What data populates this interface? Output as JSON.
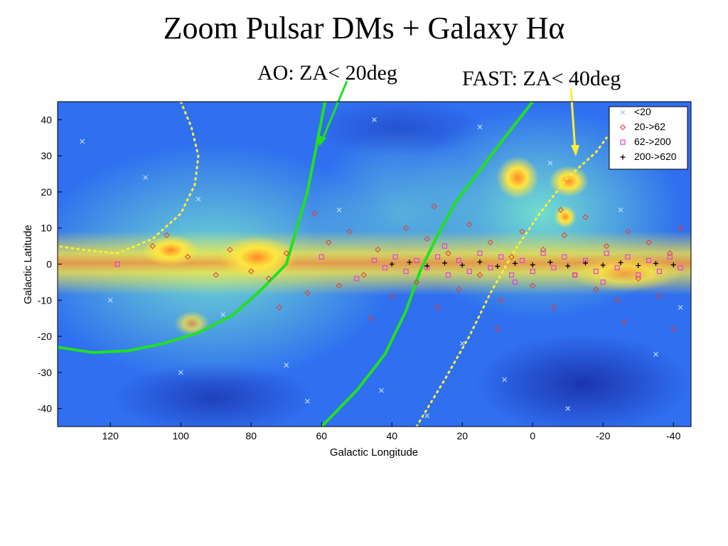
{
  "slide": {
    "title": "Zoom  Pulsar DMs + Galaxy Hα",
    "annotation_ao": "AO: ZA< 20deg",
    "annotation_fast": "FAST: ZA< 40deg"
  },
  "chart_data": {
    "type": "scatter",
    "title": "",
    "xlabel": "Galactic Longitude",
    "ylabel": "Galactic Latitude",
    "xlim": [
      135,
      -45
    ],
    "ylim": [
      -45,
      45
    ],
    "xticks": [
      120,
      100,
      80,
      60,
      40,
      20,
      0,
      -20,
      -40
    ],
    "yticks": [
      40,
      30,
      20,
      10,
      0,
      -10,
      -20,
      -30,
      -40
    ],
    "background": "H-alpha all-sky intensity map (colormap blue to yellow/red)",
    "legend_position": "top-right",
    "colors": {
      "dm_lt_20": "#b8d8ff",
      "dm_20_62": "#e83a2a",
      "dm_62_200": "#e040e0",
      "dm_200_620": "#000000",
      "ao_curve": "#22e022",
      "fast_curve": "#ffee33",
      "arrow": "#ffee33"
    },
    "series": [
      {
        "name": "<20",
        "marker": "x",
        "points": [
          [
            128,
            34
          ],
          [
            110,
            24
          ],
          [
            95,
            18
          ],
          [
            88,
            -14
          ],
          [
            70,
            -28
          ],
          [
            64,
            -38
          ],
          [
            45,
            40
          ],
          [
            43,
            -35
          ],
          [
            30,
            -42
          ],
          [
            15,
            38
          ],
          [
            8,
            -32
          ],
          [
            -10,
            -40
          ],
          [
            -25,
            15
          ],
          [
            -35,
            -25
          ],
          [
            -42,
            -12
          ],
          [
            120,
            -10
          ],
          [
            100,
            -30
          ],
          [
            55,
            15
          ],
          [
            20,
            -22
          ],
          [
            -5,
            28
          ]
        ]
      },
      {
        "name": "20->62",
        "marker": "diamond",
        "points": [
          [
            108,
            5
          ],
          [
            104,
            8
          ],
          [
            98,
            2
          ],
          [
            90,
            -3
          ],
          [
            86,
            4
          ],
          [
            80,
            -2
          ],
          [
            75,
            -4
          ],
          [
            70,
            3
          ],
          [
            64,
            -8
          ],
          [
            58,
            6
          ],
          [
            55,
            -6
          ],
          [
            52,
            9
          ],
          [
            48,
            -3
          ],
          [
            44,
            4
          ],
          [
            40,
            -9
          ],
          [
            36,
            10
          ],
          [
            33,
            -5
          ],
          [
            30,
            7
          ],
          [
            27,
            -12
          ],
          [
            24,
            3
          ],
          [
            21,
            -7
          ],
          [
            18,
            11
          ],
          [
            15,
            -3
          ],
          [
            12,
            6
          ],
          [
            9,
            -10
          ],
          [
            6,
            2
          ],
          [
            3,
            9
          ],
          [
            0,
            -6
          ],
          [
            -3,
            4
          ],
          [
            -6,
            -12
          ],
          [
            -9,
            8
          ],
          [
            -12,
            -3
          ],
          [
            -15,
            13
          ],
          [
            -18,
            -7
          ],
          [
            -21,
            5
          ],
          [
            -24,
            -10
          ],
          [
            -27,
            9
          ],
          [
            -30,
            -4
          ],
          [
            -33,
            6
          ],
          [
            -36,
            -9
          ],
          [
            -39,
            3
          ],
          [
            -42,
            10
          ],
          [
            72,
            -12
          ],
          [
            62,
            14
          ],
          [
            46,
            -15
          ],
          [
            28,
            16
          ],
          [
            10,
            -18
          ],
          [
            -8,
            15
          ],
          [
            -26,
            -16
          ],
          [
            -40,
            -18
          ]
        ]
      },
      {
        "name": "62->200",
        "marker": "square",
        "points": [
          [
            45,
            1
          ],
          [
            42,
            -1
          ],
          [
            39,
            2
          ],
          [
            36,
            -2
          ],
          [
            33,
            1
          ],
          [
            30,
            -1
          ],
          [
            27,
            2
          ],
          [
            24,
            -3
          ],
          [
            21,
            1
          ],
          [
            18,
            -2
          ],
          [
            15,
            3
          ],
          [
            12,
            -1
          ],
          [
            9,
            2
          ],
          [
            6,
            -3
          ],
          [
            3,
            1
          ],
          [
            0,
            -2
          ],
          [
            -3,
            3
          ],
          [
            -6,
            -1
          ],
          [
            -9,
            2
          ],
          [
            -12,
            -3
          ],
          [
            -15,
            1
          ],
          [
            -18,
            -2
          ],
          [
            -21,
            3
          ],
          [
            -24,
            -1
          ],
          [
            -27,
            2
          ],
          [
            -30,
            -3
          ],
          [
            -33,
            1
          ],
          [
            -36,
            -2
          ],
          [
            -39,
            2
          ],
          [
            -42,
            -1
          ],
          [
            118,
            0
          ],
          [
            60,
            2
          ],
          [
            50,
            -4
          ],
          [
            25,
            5
          ],
          [
            5,
            -5
          ],
          [
            -20,
            -5
          ]
        ]
      },
      {
        "name": "200->620",
        "marker": "plus",
        "points": [
          [
            40,
            0
          ],
          [
            35,
            0.5
          ],
          [
            30,
            -0.5
          ],
          [
            25,
            0.3
          ],
          [
            20,
            -0.3
          ],
          [
            15,
            0.6
          ],
          [
            10,
            -0.6
          ],
          [
            5,
            0.2
          ],
          [
            0,
            -0.2
          ],
          [
            -5,
            0.5
          ],
          [
            -10,
            -0.5
          ],
          [
            -15,
            0.3
          ],
          [
            -20,
            -0.3
          ],
          [
            -25,
            0.4
          ],
          [
            -30,
            -0.4
          ],
          [
            -35,
            0.2
          ],
          [
            -40,
            -0.2
          ]
        ]
      }
    ],
    "curves": [
      {
        "label_ref": "annotation_ao",
        "style": "solid",
        "color_key": "ao_curve",
        "points": [
          [
            135,
            -23
          ],
          [
            125,
            -24.5
          ],
          [
            115,
            -24
          ],
          [
            105,
            -22
          ],
          [
            95,
            -19
          ],
          [
            85,
            -14
          ],
          [
            77,
            -7
          ],
          [
            70,
            0
          ],
          [
            67,
            10
          ],
          [
            64,
            20
          ],
          [
            62,
            30
          ],
          [
            60,
            40
          ],
          [
            59,
            45
          ]
        ]
      },
      {
        "label_ref": "annotation_ao",
        "style": "solid",
        "color_key": "ao_curve",
        "points": [
          [
            60,
            -45
          ],
          [
            50,
            -35
          ],
          [
            42,
            -25
          ],
          [
            36,
            -13
          ],
          [
            32,
            -2
          ],
          [
            27,
            8
          ],
          [
            22,
            17
          ],
          [
            15,
            26
          ],
          [
            8,
            35
          ],
          [
            0,
            45
          ]
        ]
      },
      {
        "label_ref": "annotation_ao",
        "style": "dotted",
        "color_key": "fast_curve",
        "points": [
          [
            100,
            45
          ],
          [
            97,
            38
          ],
          [
            95,
            30
          ],
          [
            96,
            22
          ],
          [
            100,
            14
          ],
          [
            108,
            7
          ],
          [
            118,
            3
          ],
          [
            128,
            4
          ],
          [
            135,
            5
          ]
        ]
      },
      {
        "label_ref": "annotation_fast",
        "style": "dotted",
        "color_key": "fast_curve",
        "points": [
          [
            33,
            -45
          ],
          [
            25,
            -32
          ],
          [
            18,
            -20
          ],
          [
            12,
            -8
          ],
          [
            5,
            4
          ],
          [
            -2,
            14
          ],
          [
            -10,
            24
          ],
          [
            -18,
            31
          ],
          [
            -21,
            35
          ]
        ]
      }
    ]
  }
}
